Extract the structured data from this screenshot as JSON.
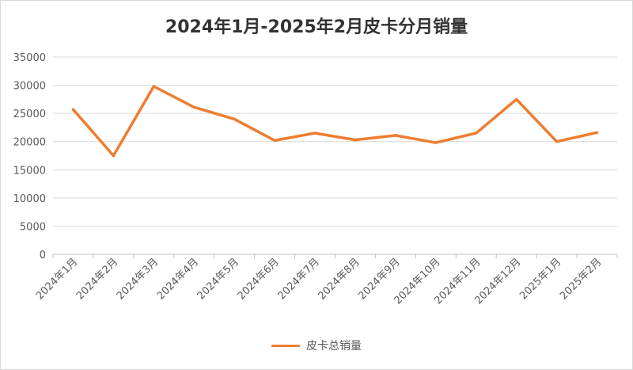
{
  "chart_data": {
    "type": "line",
    "title": "2024年1月-2025年2月皮卡分月销量",
    "xlabel": "",
    "ylabel": "",
    "categories": [
      "2024年1月",
      "2024年2月",
      "2024年3月",
      "2024年4月",
      "2024年5月",
      "2024年6月",
      "2024年7月",
      "2024年8月",
      "2024年9月",
      "2024年10月",
      "2024年11月",
      "2024年12月",
      "2025年1月",
      "2025年2月"
    ],
    "series": [
      {
        "name": "皮卡总销量",
        "values": [
          25700,
          17500,
          29800,
          26100,
          24000,
          20200,
          21500,
          20300,
          21100,
          19800,
          21500,
          27500,
          20000,
          21600
        ]
      }
    ],
    "ylim": [
      0,
      35000
    ],
    "yticks": [
      0,
      5000,
      10000,
      15000,
      20000,
      25000,
      30000,
      35000
    ],
    "grid": true,
    "legend_position": "bottom",
    "colors": {
      "line": "#ED7D31",
      "grid": "#d9d9d9",
      "text": "#595959",
      "title": "#333333"
    }
  }
}
